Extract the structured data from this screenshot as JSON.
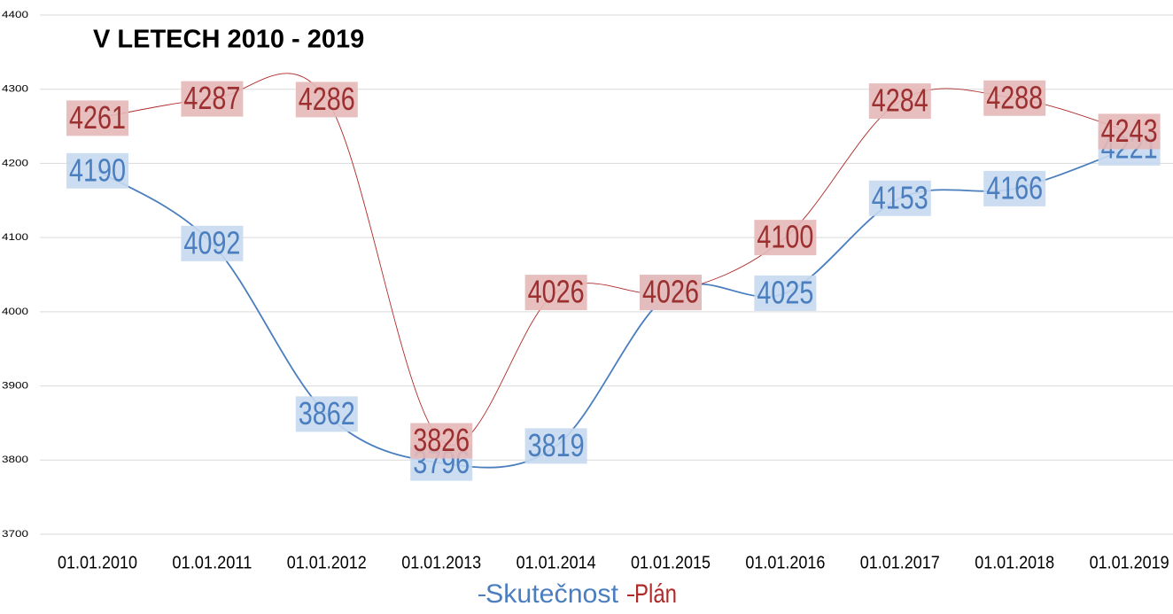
{
  "chart_data": {
    "type": "line",
    "title": "V LETECH 2010 - 2019",
    "categories": [
      "01.01.2010",
      "01.01.2011",
      "01.01.2012",
      "01.01.2013",
      "01.01.2014",
      "01.01.2015",
      "01.01.2016",
      "01.01.2017",
      "01.01.2018",
      "01.01.2019"
    ],
    "series": [
      {
        "name": "Skutečnost",
        "color": "#4a7ebf",
        "values": [
          4190,
          4092,
          3862,
          3796,
          3819,
          4026,
          4025,
          4153,
          4166,
          4221
        ]
      },
      {
        "name": "Plán",
        "color": "#b02a2a",
        "values": [
          4261,
          4287,
          4286,
          3826,
          4026,
          4026,
          4100,
          4284,
          4288,
          4243
        ]
      }
    ],
    "ylim": [
      3700,
      4400
    ],
    "yticks": [
      3700,
      3800,
      3900,
      4000,
      4100,
      4200,
      4300,
      4400
    ],
    "grid": true,
    "legend": "bottom"
  }
}
